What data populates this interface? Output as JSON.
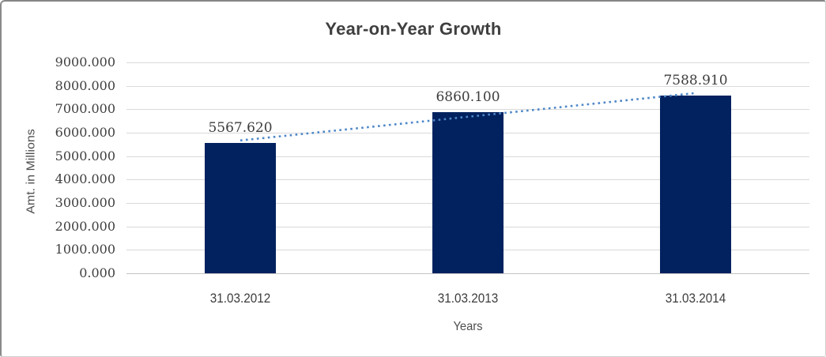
{
  "chart_data": {
    "type": "bar",
    "title": "Year-on-Year Growth",
    "xlabel": "Years",
    "ylabel": "Amt. in Millions",
    "categories": [
      "31.03.2012",
      "31.03.2013",
      "31.03.2014"
    ],
    "values": [
      5567.62,
      6860.1,
      7588.91
    ],
    "data_labels": [
      "5567.620",
      "6860.100",
      "7588.910"
    ],
    "ytick_labels": [
      "0.000",
      "1000.000",
      "2000.000",
      "3000.000",
      "4000.000",
      "5000.000",
      "6000.000",
      "7000.000",
      "8000.000",
      "9000.000"
    ],
    "ylim": [
      0,
      9000
    ],
    "ytick_step": 1000,
    "grid": "horizontal-only",
    "legend": "none",
    "trendline": {
      "kind": "linear",
      "style": "dotted"
    },
    "colors": {
      "bar": "#02215f",
      "trendline": "#4e87c8",
      "gridline": "#d9d9d9",
      "baseline": "#c3c3c3",
      "title_text": "#3f3f3f",
      "label_text": "#3d3d3d",
      "axis_title_text": "#4d4d4d"
    }
  }
}
